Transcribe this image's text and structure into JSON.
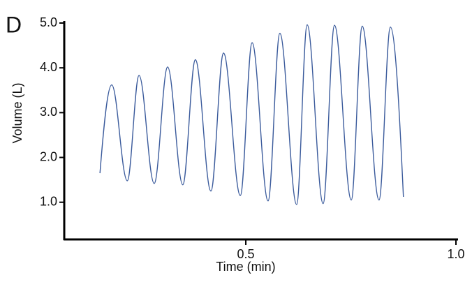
{
  "chart_data": {
    "type": "line",
    "panel_label": "D",
    "x_label": "Time (min)",
    "y_label": "Volume (L)",
    "x": [
      0.153,
      0.181,
      0.218,
      0.246,
      0.282,
      0.314,
      0.35,
      0.38,
      0.417,
      0.447,
      0.487,
      0.515,
      0.553,
      0.581,
      0.621,
      0.646,
      0.684,
      0.711,
      0.751,
      0.777,
      0.817,
      0.844,
      0.875
    ],
    "series": [
      {
        "color": "#3b5b9c",
        "values": [
          1.65,
          3.62,
          1.48,
          3.83,
          1.42,
          4.02,
          1.39,
          4.18,
          1.25,
          4.33,
          1.15,
          4.56,
          1.03,
          4.77,
          0.95,
          4.96,
          0.97,
          4.95,
          1.05,
          4.93,
          1.05,
          4.91,
          1.12
        ]
      }
    ],
    "xlim": [
      0.068,
      1.0
    ],
    "xticks": [
      0.5,
      {
        "value": 1,
        "label": "1.0"
      }
    ],
    "ylim": [
      0.17,
      5.0
    ],
    "yticks": [
      {
        "value": 1,
        "label": "1.0"
      },
      {
        "value": 2,
        "label": "2.0"
      },
      {
        "value": 3,
        "label": "3.0"
      },
      {
        "value": 4,
        "label": "4.0"
      },
      {
        "value": 5,
        "label": "5.0"
      }
    ]
  }
}
